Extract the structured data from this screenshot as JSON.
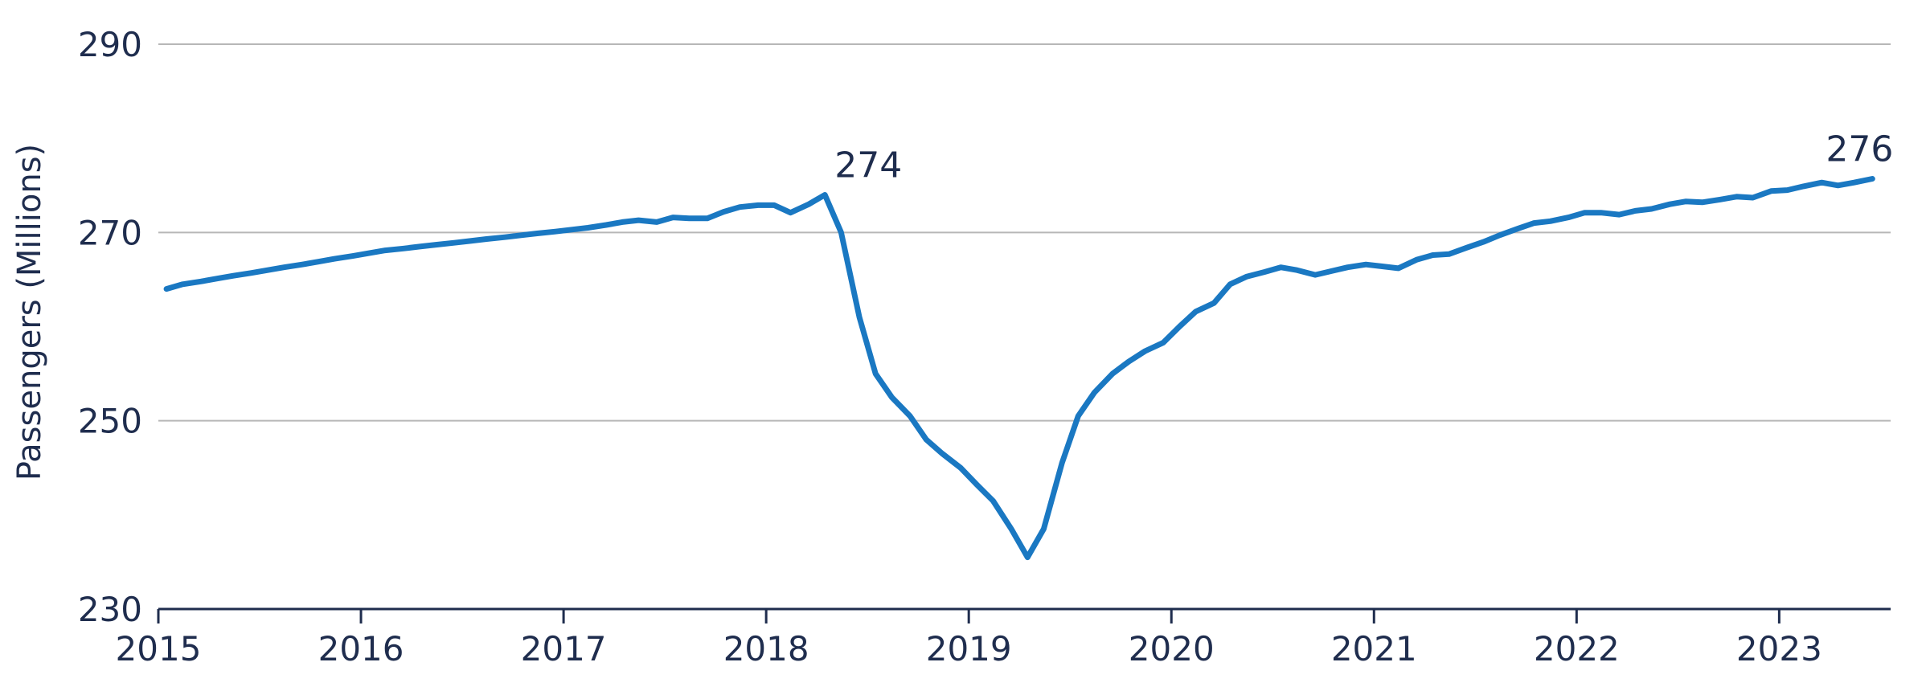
{
  "chart_data": {
    "type": "line",
    "title": "",
    "xlabel": "",
    "ylabel": "Passengers (Millions)",
    "xlim": [
      2015,
      2023.55
    ],
    "ylim": [
      230,
      290
    ],
    "y_ticks": [
      230,
      250,
      270,
      290
    ],
    "x_ticks": [
      2015,
      2016,
      2017,
      2018,
      2019,
      2020,
      2021,
      2022,
      2023
    ],
    "grid": true,
    "legend": "none",
    "colors": {
      "series": "#1a78c2",
      "axis": "#1f2d4e",
      "grid": "#b7b7b7"
    },
    "series": [
      {
        "name": "",
        "x": [
          2015.04,
          2015.12,
          2015.21,
          2015.29,
          2015.37,
          2015.46,
          2015.54,
          2015.62,
          2015.71,
          2015.79,
          2015.87,
          2015.96,
          2016.04,
          2016.12,
          2016.21,
          2016.29,
          2016.37,
          2016.46,
          2016.54,
          2016.62,
          2016.71,
          2016.79,
          2016.87,
          2016.96,
          2017.04,
          2017.12,
          2017.21,
          2017.29,
          2017.37,
          2017.46,
          2017.54,
          2017.62,
          2017.71,
          2017.79,
          2017.87,
          2017.96,
          2018.04,
          2018.12,
          2018.21,
          2018.29,
          2018.37,
          2018.46,
          2018.54,
          2018.62,
          2018.71,
          2018.79,
          2018.87,
          2018.96,
          2019.04,
          2019.12,
          2019.21,
          2019.29,
          2019.37,
          2019.46,
          2019.54,
          2019.62,
          2019.71,
          2019.79,
          2019.87,
          2019.96,
          2020.04,
          2020.12,
          2020.21,
          2020.29,
          2020.37,
          2020.46,
          2020.54,
          2020.62,
          2020.71,
          2020.79,
          2020.87,
          2020.96,
          2021.04,
          2021.12,
          2021.21,
          2021.29,
          2021.37,
          2021.46,
          2021.54,
          2021.62,
          2021.71,
          2021.79,
          2021.87,
          2021.96,
          2022.04,
          2022.12,
          2022.21,
          2022.29,
          2022.37,
          2022.46,
          2022.54,
          2022.62,
          2022.71,
          2022.79,
          2022.87,
          2022.96,
          2023.04,
          2023.12,
          2023.21,
          2023.29,
          2023.37,
          2023.46
        ],
        "y": [
          264.0,
          264.5,
          264.8,
          265.1,
          265.4,
          265.7,
          266.0,
          266.3,
          266.6,
          266.9,
          267.2,
          267.5,
          267.8,
          268.1,
          268.3,
          268.5,
          268.7,
          268.9,
          269.1,
          269.3,
          269.5,
          269.7,
          269.9,
          270.1,
          270.3,
          270.5,
          270.8,
          271.1,
          271.3,
          271.1,
          271.6,
          271.5,
          271.5,
          272.2,
          272.7,
          272.9,
          272.9,
          272.1,
          273.0,
          274.0,
          270.0,
          261.0,
          255.0,
          252.5,
          250.5,
          248.0,
          246.5,
          245.0,
          243.2,
          241.5,
          238.5,
          235.5,
          238.5,
          245.5,
          250.5,
          253.0,
          255.0,
          256.3,
          257.4,
          258.3,
          260.0,
          261.6,
          262.5,
          264.5,
          265.3,
          265.8,
          266.3,
          266.0,
          265.5,
          265.9,
          266.3,
          266.6,
          266.4,
          266.2,
          267.1,
          267.6,
          267.7,
          268.4,
          269.0,
          269.7,
          270.4,
          271.0,
          271.2,
          271.6,
          272.1,
          272.1,
          271.9,
          272.3,
          272.5,
          273.0,
          273.3,
          273.2,
          273.5,
          273.8,
          273.7,
          274.4,
          274.5,
          274.9,
          275.3,
          275.0,
          275.3,
          275.7
        ]
      }
    ],
    "annotations": [
      {
        "label": "274",
        "x": 2018.29,
        "y": 274
      },
      {
        "label": "276",
        "x": 2023.46,
        "y": 275.7
      }
    ]
  }
}
